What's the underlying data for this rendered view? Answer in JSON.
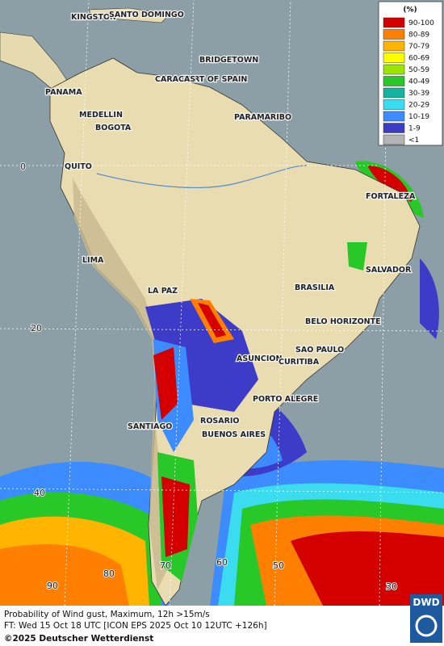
{
  "legend": {
    "title": "(%)",
    "items": [
      {
        "label": "90-100",
        "color": "#d40000"
      },
      {
        "label": "80-89",
        "color": "#ff8000"
      },
      {
        "label": "70-79",
        "color": "#ffb400"
      },
      {
        "label": "60-69",
        "color": "#ffff00"
      },
      {
        "label": "50-59",
        "color": "#9be600"
      },
      {
        "label": "40-49",
        "color": "#28c828"
      },
      {
        "label": "30-39",
        "color": "#14b4a0"
      },
      {
        "label": "20-29",
        "color": "#3cdcf0"
      },
      {
        "label": "10-19",
        "color": "#3c8cff"
      },
      {
        "label": "1-9",
        "color": "#3c3cc8"
      },
      {
        "label": "<1",
        "color": "#b4b4b4"
      }
    ]
  },
  "cities": [
    "KINGSTON",
    "SANTO DOMINGO",
    "BRIDGETOWN",
    "PORT OF SPAIN",
    "CARACAS",
    "PANAMA",
    "MEDELLIN",
    "BOGOTA",
    "PARAMARIBO",
    "QUITO",
    "FORTALEZA",
    "LIMA",
    "SALVADOR",
    "LA PAZ",
    "BRASILIA",
    "BELO HORIZONTE",
    "SAO PAULO",
    "ASUNCION",
    "CURITIBA",
    "PORTO ALEGRE",
    "SANTIAGO",
    "ROSARIO",
    "BUENOS AIRES"
  ],
  "graticule": [
    0,
    20,
    40,
    90,
    80,
    70,
    60,
    50,
    30
  ],
  "footer": {
    "line1": "Probability of Wind gust, Maximum, 12h >15m/s",
    "line2": "FT: Wed 15 Oct 18 UTC [ICON EPS 2025 Oct 10 12UTC +126h]",
    "copyright": "©2025 Deutscher Wetterdienst"
  },
  "logo": "DWD"
}
